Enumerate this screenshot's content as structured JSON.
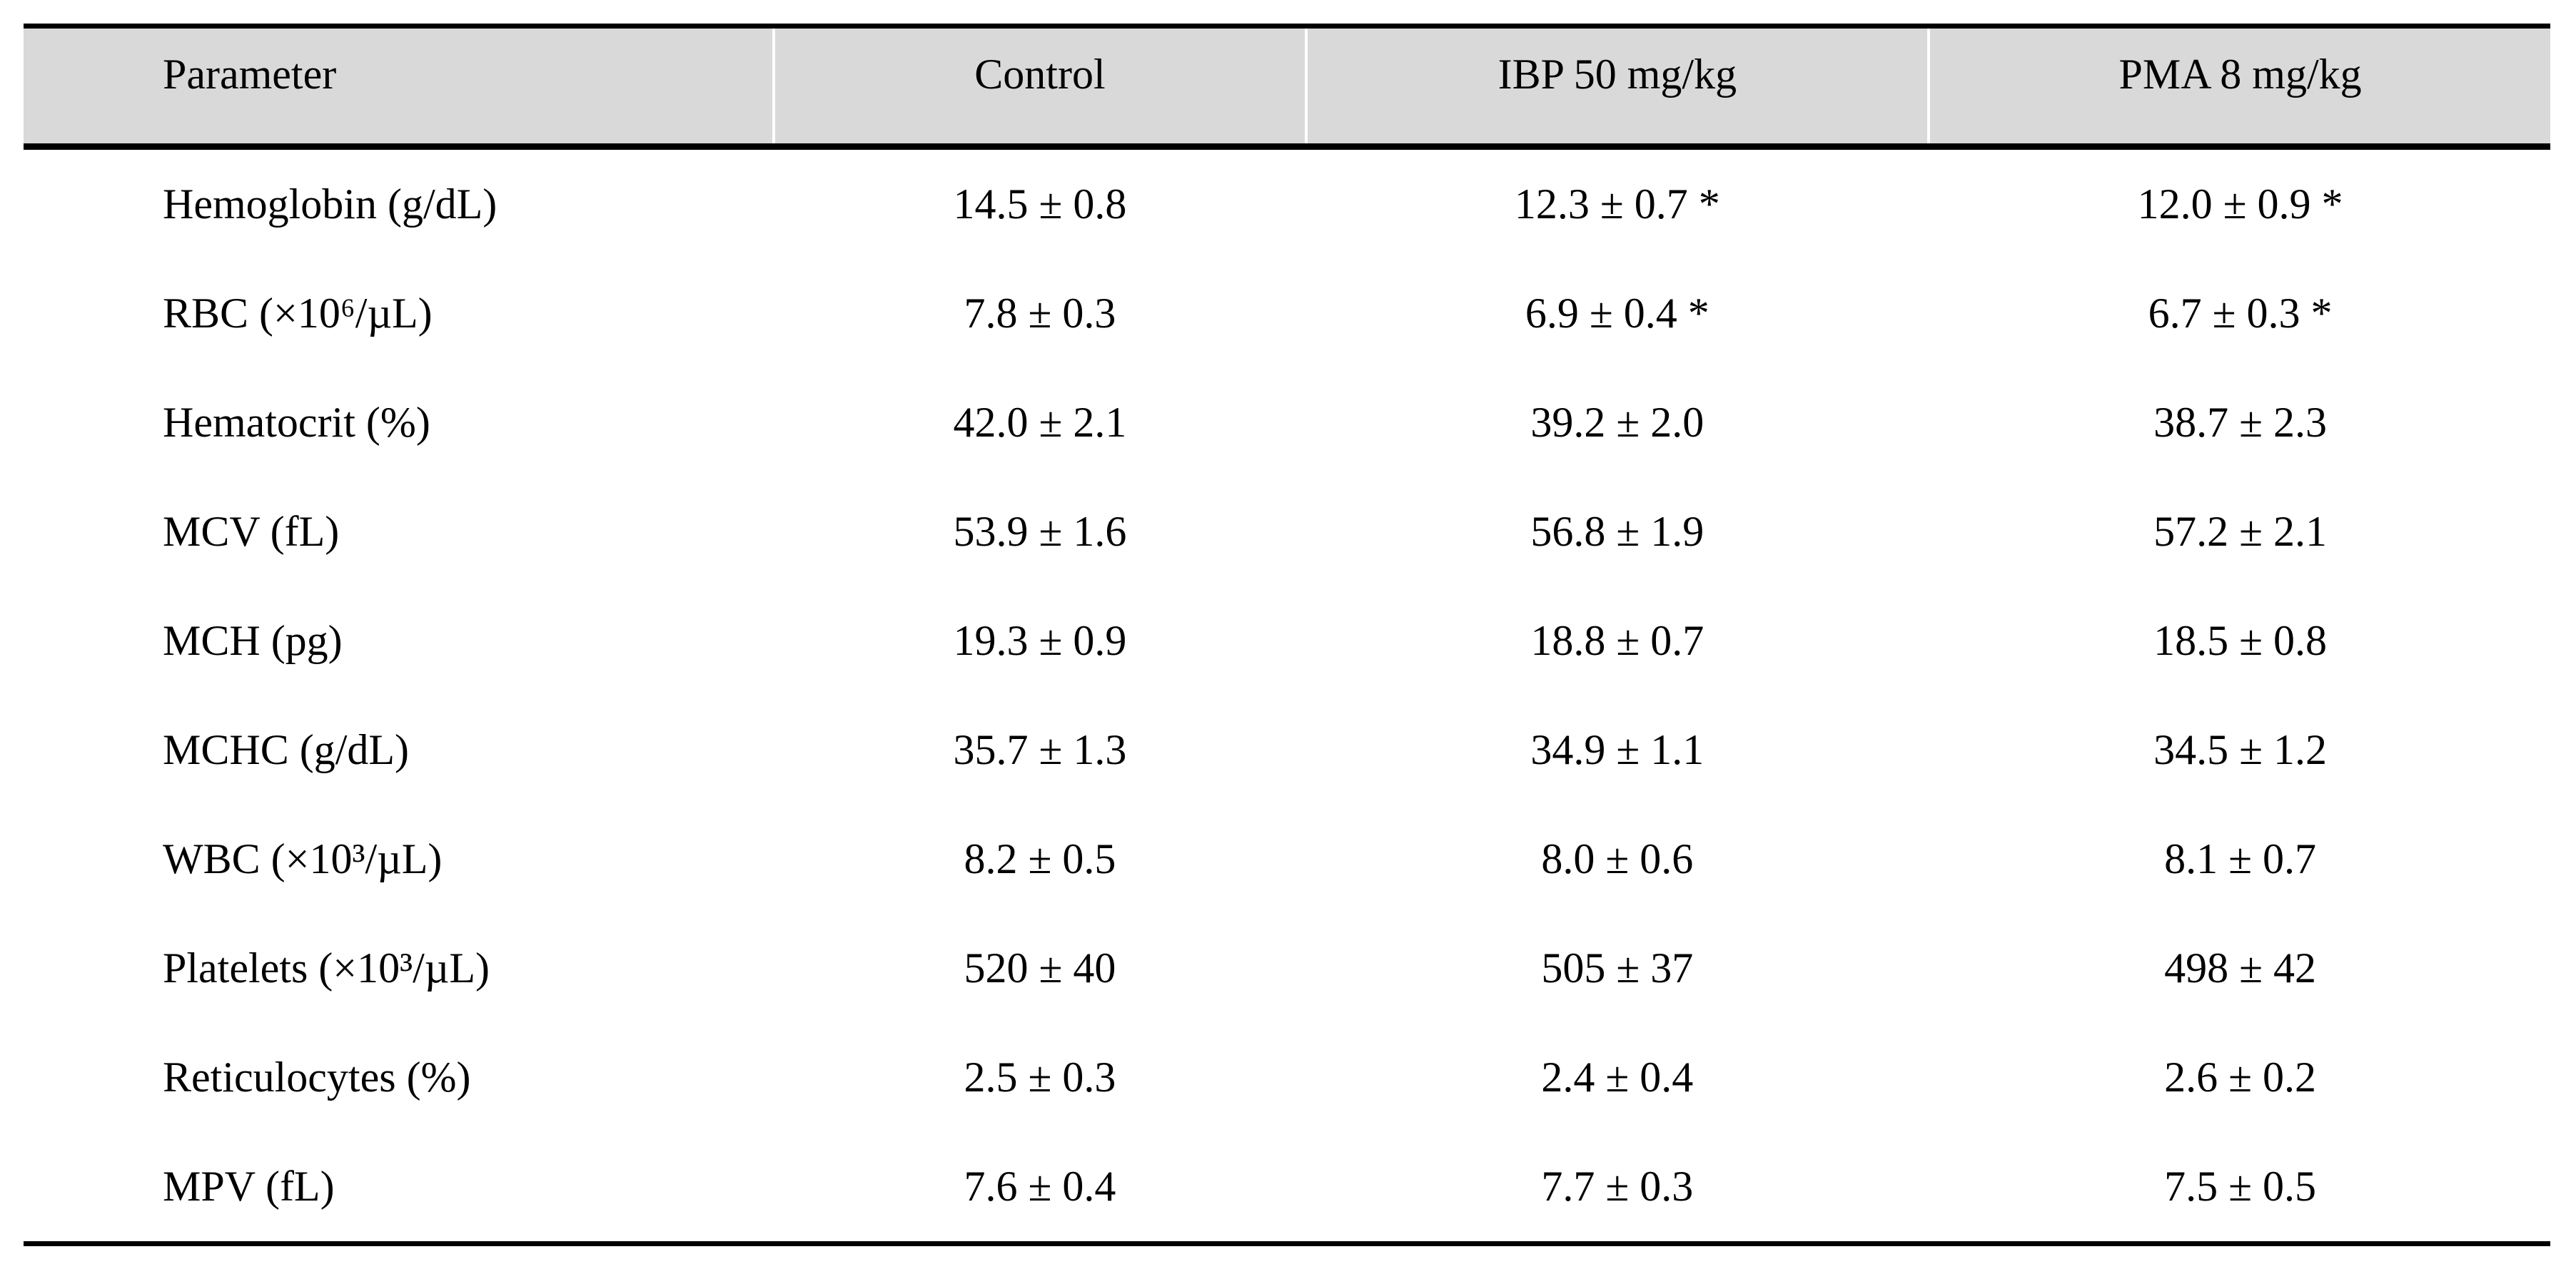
{
  "table": {
    "columns": [
      "Parameter",
      "Control",
      "IBP 50 mg/kg",
      "PMA 8 mg/kg"
    ],
    "rows": [
      [
        "Hemoglobin (g/dL)",
        "14.5 ± 0.8",
        "12.3 ± 0.7 *",
        "12.0 ± 0.9 *"
      ],
      [
        "RBC (×10⁶/µL)",
        "7.8 ± 0.3",
        "6.9 ± 0.4 *",
        "6.7 ± 0.3 *"
      ],
      [
        "Hematocrit (%)",
        "42.0 ± 2.1",
        "39.2 ± 2.0",
        "38.7 ± 2.3"
      ],
      [
        "MCV (fL)",
        "53.9 ± 1.6",
        "56.8 ± 1.9",
        "57.2 ± 2.1"
      ],
      [
        "MCH (pg)",
        "19.3 ± 0.9",
        "18.8 ± 0.7",
        "18.5 ± 0.8"
      ],
      [
        "MCHC (g/dL)",
        "35.7 ± 1.3",
        "34.9 ± 1.1",
        "34.5 ± 1.2"
      ],
      [
        "WBC (×10³/µL)",
        "8.2 ± 0.5",
        "8.0 ± 0.6",
        "8.1 ± 0.7"
      ],
      [
        "Platelets (×10³/µL)",
        "520 ± 40",
        "505 ± 37",
        "498 ± 42"
      ],
      [
        "Reticulocytes (%)",
        "2.5 ± 0.3",
        "2.4 ± 0.4",
        "2.6 ± 0.2"
      ],
      [
        "MPV (fL)",
        "7.6 ± 0.4",
        "7.7 ± 0.3",
        "7.5 ± 0.5"
      ]
    ]
  },
  "colors": {
    "header_bg": "#d9d9d9",
    "rule": "#000000",
    "column_divider": "#ffffff",
    "text": "#000000",
    "page_bg": "#ffffff"
  }
}
